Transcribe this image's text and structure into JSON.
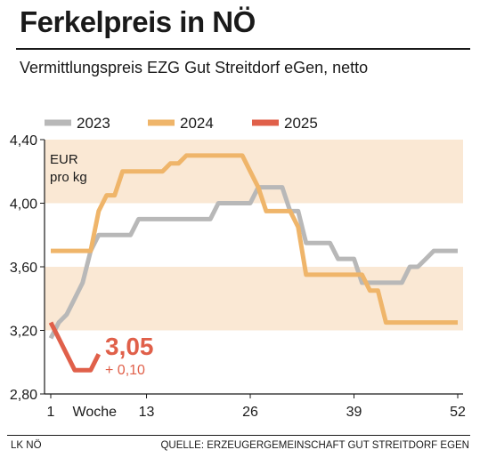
{
  "header": {
    "title": "Ferkelpreis in NÖ",
    "subtitle": "Vermittlungspreis EZG Gut Streitdorf eGen, netto"
  },
  "footer": {
    "left": "LK NÖ",
    "right": "QUELLE: ERZEUGERGEMEINSCHAFT GUT STREITDORF EGEN"
  },
  "chart_data": {
    "type": "line",
    "unit_label": [
      "EUR",
      "pro kg"
    ],
    "xlabel": "Woche",
    "x_ticks": [
      "1",
      "13",
      "26",
      "39",
      "52"
    ],
    "y_ticks": [
      "4,40",
      "4,00",
      "3,60",
      "3,20",
      "2,80"
    ],
    "ylim": [
      2.8,
      4.4
    ],
    "xlim": [
      1,
      52
    ],
    "grid": false,
    "legend_position": "top",
    "bands": [
      [
        3.2,
        3.6
      ],
      [
        4.0,
        4.4
      ]
    ],
    "band_color": "#fae8d4",
    "series": [
      {
        "name": "2023",
        "color": "#b8b8b8",
        "points": [
          [
            1,
            3.15
          ],
          [
            2,
            3.25
          ],
          [
            3,
            3.3
          ],
          [
            4,
            3.4
          ],
          [
            5,
            3.5
          ],
          [
            6,
            3.7
          ],
          [
            7,
            3.8
          ],
          [
            8,
            3.8
          ],
          [
            9,
            3.8
          ],
          [
            10,
            3.8
          ],
          [
            11,
            3.8
          ],
          [
            12,
            3.9
          ],
          [
            13,
            3.9
          ],
          [
            14,
            3.9
          ],
          [
            15,
            3.9
          ],
          [
            16,
            3.9
          ],
          [
            17,
            3.9
          ],
          [
            18,
            3.9
          ],
          [
            19,
            3.9
          ],
          [
            20,
            3.9
          ],
          [
            21,
            3.9
          ],
          [
            22,
            4.0
          ],
          [
            23,
            4.0
          ],
          [
            24,
            4.0
          ],
          [
            25,
            4.0
          ],
          [
            26,
            4.0
          ],
          [
            27,
            4.1
          ],
          [
            28,
            4.1
          ],
          [
            29,
            4.1
          ],
          [
            30,
            4.1
          ],
          [
            31,
            3.95
          ],
          [
            32,
            3.95
          ],
          [
            33,
            3.75
          ],
          [
            34,
            3.75
          ],
          [
            35,
            3.75
          ],
          [
            36,
            3.75
          ],
          [
            37,
            3.65
          ],
          [
            38,
            3.65
          ],
          [
            39,
            3.65
          ],
          [
            40,
            3.5
          ],
          [
            41,
            3.5
          ],
          [
            42,
            3.5
          ],
          [
            43,
            3.5
          ],
          [
            44,
            3.5
          ],
          [
            45,
            3.5
          ],
          [
            46,
            3.6
          ],
          [
            47,
            3.6
          ],
          [
            48,
            3.65
          ],
          [
            49,
            3.7
          ],
          [
            50,
            3.7
          ],
          [
            51,
            3.7
          ],
          [
            52,
            3.7
          ]
        ]
      },
      {
        "name": "2024",
        "color": "#efb56a",
        "points": [
          [
            1,
            3.7
          ],
          [
            2,
            3.7
          ],
          [
            3,
            3.7
          ],
          [
            4,
            3.7
          ],
          [
            5,
            3.7
          ],
          [
            6,
            3.7
          ],
          [
            7,
            3.95
          ],
          [
            8,
            4.05
          ],
          [
            9,
            4.05
          ],
          [
            10,
            4.2
          ],
          [
            11,
            4.2
          ],
          [
            12,
            4.2
          ],
          [
            13,
            4.2
          ],
          [
            14,
            4.2
          ],
          [
            15,
            4.2
          ],
          [
            16,
            4.25
          ],
          [
            17,
            4.25
          ],
          [
            18,
            4.3
          ],
          [
            19,
            4.3
          ],
          [
            20,
            4.3
          ],
          [
            21,
            4.3
          ],
          [
            22,
            4.3
          ],
          [
            23,
            4.3
          ],
          [
            24,
            4.3
          ],
          [
            25,
            4.3
          ],
          [
            26,
            4.2
          ],
          [
            27,
            4.1
          ],
          [
            28,
            3.95
          ],
          [
            29,
            3.95
          ],
          [
            30,
            3.95
          ],
          [
            31,
            3.95
          ],
          [
            32,
            3.85
          ],
          [
            33,
            3.55
          ],
          [
            34,
            3.55
          ],
          [
            35,
            3.55
          ],
          [
            36,
            3.55
          ],
          [
            37,
            3.55
          ],
          [
            38,
            3.55
          ],
          [
            39,
            3.55
          ],
          [
            40,
            3.55
          ],
          [
            41,
            3.45
          ],
          [
            42,
            3.45
          ],
          [
            43,
            3.25
          ],
          [
            44,
            3.25
          ],
          [
            45,
            3.25
          ],
          [
            46,
            3.25
          ],
          [
            47,
            3.25
          ],
          [
            48,
            3.25
          ],
          [
            49,
            3.25
          ],
          [
            50,
            3.25
          ],
          [
            51,
            3.25
          ],
          [
            52,
            3.25
          ]
        ]
      },
      {
        "name": "2025",
        "color": "#e0604a",
        "points": [
          [
            1,
            3.25
          ],
          [
            2,
            3.15
          ],
          [
            3,
            3.05
          ],
          [
            4,
            2.95
          ],
          [
            5,
            2.95
          ],
          [
            6,
            2.95
          ],
          [
            7,
            3.05
          ]
        ]
      }
    ],
    "annotation": {
      "value": "3,05",
      "change": "+ 0,10"
    }
  }
}
